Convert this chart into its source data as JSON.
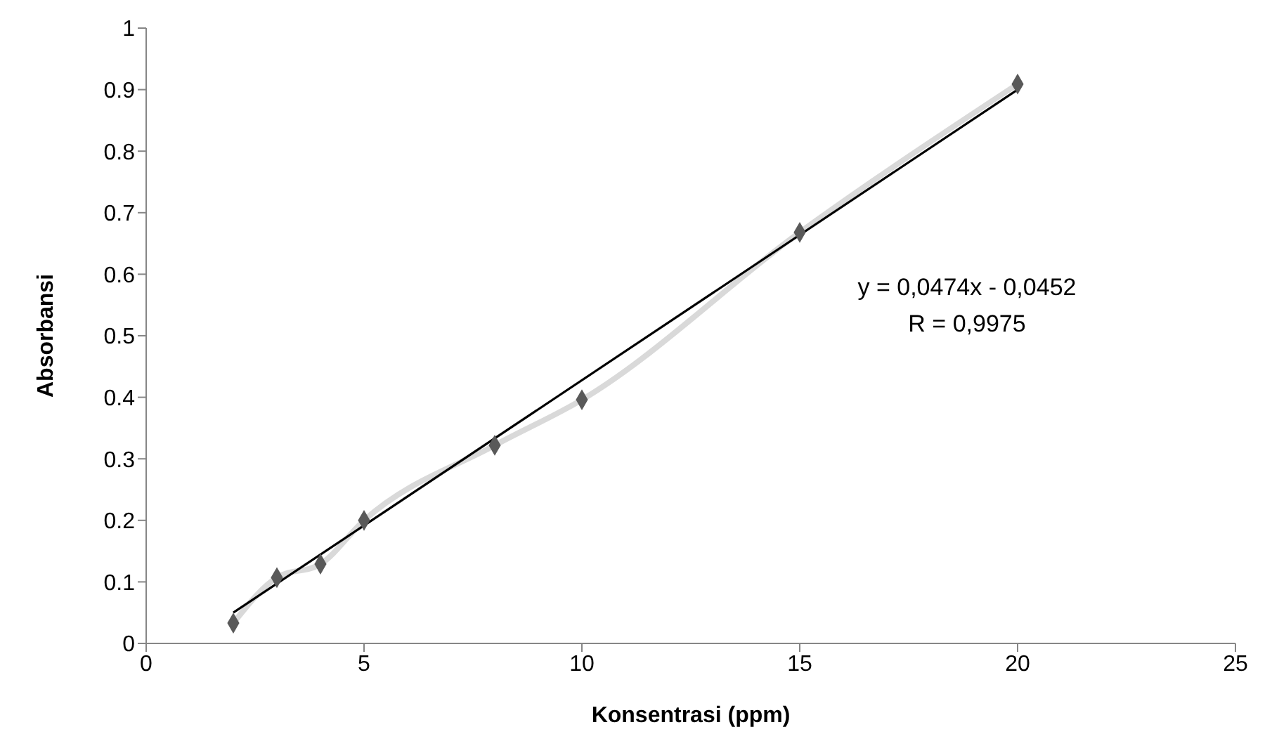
{
  "chart_data": {
    "type": "scatter",
    "xlabel": "Konsentrasi (ppm)",
    "ylabel": "Absorbansi",
    "x": [
      2,
      3,
      4,
      5,
      8,
      10,
      15,
      20
    ],
    "series": [
      {
        "type": "line",
        "color": "#d9d9d9",
        "marker": "none",
        "values": [
          0.033,
          0.107,
          0.129,
          0.2,
          0.322,
          0.396,
          0.668,
          0.909
        ]
      },
      {
        "color": "#595959",
        "values": [
          0.033,
          0.107,
          0.129,
          0.2,
          0.322,
          0.396,
          0.668,
          0.909
        ]
      },
      {
        "type": "line",
        "color": "#000000",
        "marker": "none",
        "x": [
          2,
          20
        ],
        "values": [
          0.05,
          0.9
        ]
      }
    ],
    "xlim": [
      0,
      25
    ],
    "xticks": [
      0,
      5,
      10,
      15,
      20,
      25
    ],
    "ylim": [
      0,
      1
    ],
    "yticks": [
      0,
      0.1,
      0.2,
      0.3,
      0.4,
      0.5,
      0.6,
      0.7,
      0.8,
      0.9,
      1
    ],
    "grid": false,
    "marker": "diamond",
    "line_style": "solid",
    "annotations": [
      "y = 0,0474x - 0,0452",
      "R = 0,9975"
    ]
  }
}
